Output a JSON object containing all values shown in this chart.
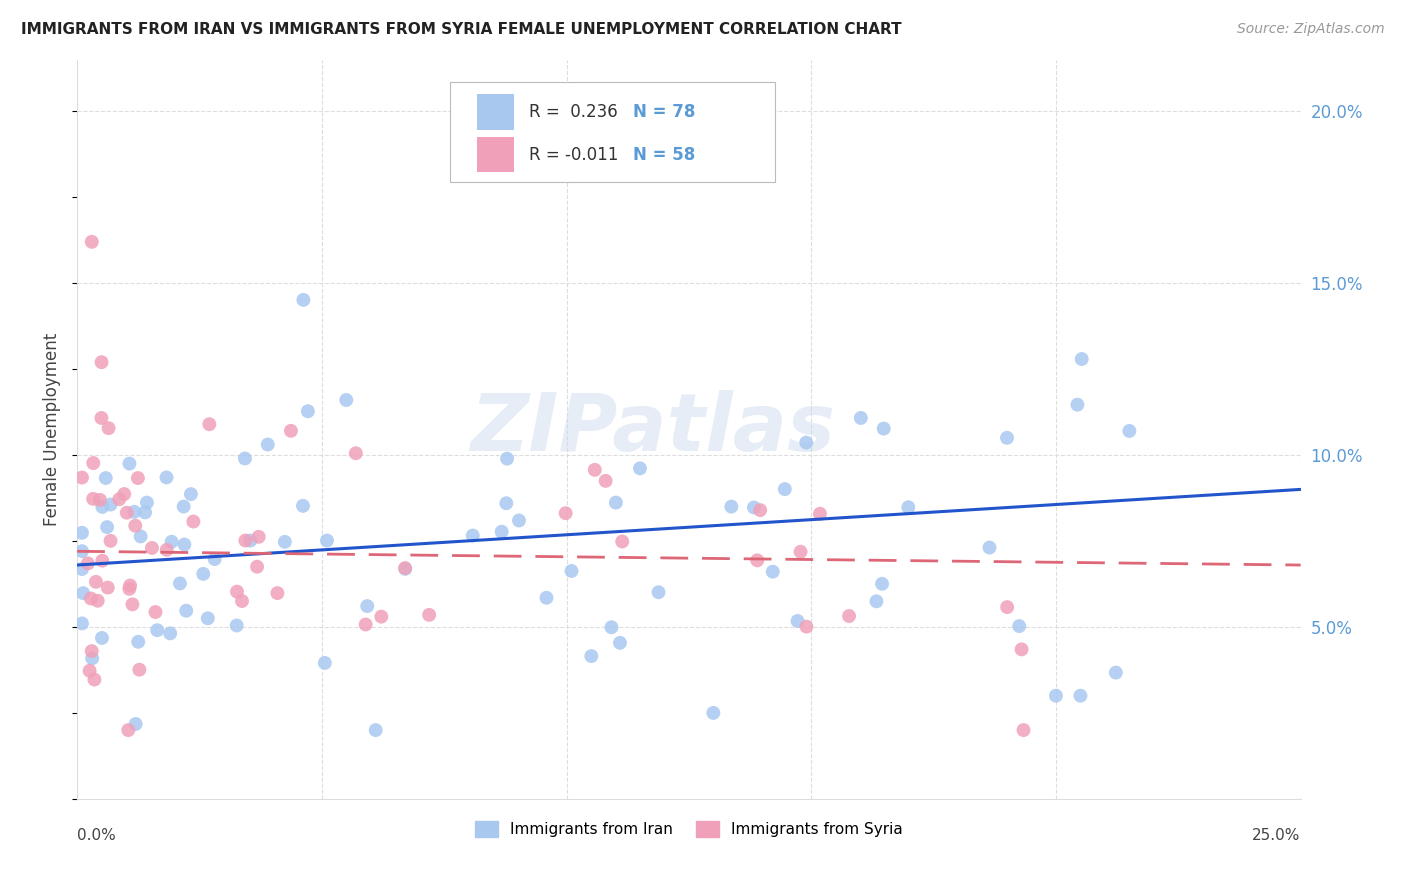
{
  "title": "IMMIGRANTS FROM IRAN VS IMMIGRANTS FROM SYRIA FEMALE UNEMPLOYMENT CORRELATION CHART",
  "source": "Source: ZipAtlas.com",
  "ylabel": "Female Unemployment",
  "right_ytick_vals": [
    0.05,
    0.1,
    0.15,
    0.2
  ],
  "xlim": [
    0.0,
    0.25
  ],
  "ylim": [
    0.0,
    0.215
  ],
  "iran_R": 0.236,
  "iran_N": 78,
  "syria_R": -0.011,
  "syria_N": 58,
  "iran_color": "#A8C8F0",
  "syria_color": "#F0A0B8",
  "iran_line_color": "#2255CC",
  "syria_line_color": "#DD6677",
  "watermark": "ZIPatlas",
  "grid_color": "#DDDDDD",
  "iran_line_start_y": 0.068,
  "iran_line_end_y": 0.09,
  "syria_line_start_y": 0.072,
  "syria_line_end_y": 0.068
}
